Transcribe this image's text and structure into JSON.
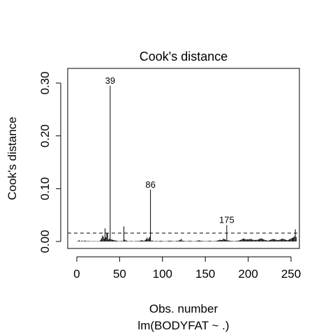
{
  "chart_data": {
    "type": "bar",
    "title": "Cook's distance",
    "xlabel": "Obs. number",
    "ylabel": "Cook's distance",
    "subtitle": "lm(BODYFAT ~ .)",
    "xlim": [
      0,
      252
    ],
    "ylim": [
      0,
      0.32
    ],
    "x_ticks": [
      "0",
      "50",
      "100",
      "150",
      "200",
      "250"
    ],
    "x_tick_values": [
      0,
      50,
      100,
      150,
      200,
      250
    ],
    "y_ticks": [
      "0.00",
      "0.10",
      "0.20",
      "0.30"
    ],
    "y_tick_values": [
      0,
      0.1,
      0.2,
      0.3
    ],
    "threshold": 0.0159,
    "threshold_style": "dashed",
    "labeled_points": [
      {
        "x": 39,
        "label": "39"
      },
      {
        "x": 86,
        "label": "86"
      },
      {
        "x": 175,
        "label": "175"
      }
    ],
    "values": [
      0.0012,
      0.0008,
      0.0025,
      0.0004,
      0.0006,
      0.0019,
      0.0003,
      0.0009,
      0.0015,
      0.0017,
      0.0005,
      0.0007,
      0.0011,
      0.0009,
      0.0006,
      0.0004,
      0.0008,
      0.0005,
      0.0006,
      0.0007,
      0.0003,
      0.0009,
      0.0004,
      0.0005,
      0.0006,
      0.0008,
      0.0012,
      0.0035,
      0.0061,
      0.0113,
      0.0095,
      0.0056,
      0.0247,
      0.0081,
      0.0151,
      0.0152,
      0.0034,
      0.0054,
      0.295,
      0.0041,
      0.0036,
      0.0031,
      0.0028,
      0.0024,
      0.0019,
      0.0015,
      0.0012,
      0.0009,
      0.0007,
      0.0005,
      0.0006,
      0.0011,
      0.0009,
      0.0015,
      0.0285,
      0.0036,
      0.0021,
      0.0019,
      0.0007,
      0.0009,
      0.0004,
      0.0005,
      0.0011,
      0.0009,
      0.0007,
      0.0005,
      0.0004,
      0.0006,
      0.0008,
      0.0011,
      0.0007,
      0.0009,
      0.0011,
      0.0015,
      0.0021,
      0.0025,
      0.0016,
      0.0014,
      0.0018,
      0.0032,
      0.0045,
      0.0075,
      0.0045,
      0.0062,
      0.0086,
      0.098,
      0.0013,
      0.0021,
      0.0008,
      0.0005,
      0.0007,
      0.0011,
      0.0009,
      0.0006,
      0.0006,
      0.0008,
      0.0011,
      0.0013,
      0.0012,
      0.0009,
      0.0007,
      0.0005,
      0.0004,
      0.0006,
      0.0007,
      0.0009,
      0.0011,
      0.0013,
      0.0016,
      0.0012,
      0.0009,
      0.0008,
      0.0006,
      0.0005,
      0.0007,
      0.0009,
      0.0011,
      0.0014,
      0.0018,
      0.0024,
      0.0032,
      0.0052,
      0.0016,
      0.0015,
      0.0012,
      0.0009,
      0.0007,
      0.0006,
      0.0007,
      0.0009,
      0.0011,
      0.0014,
      0.0012,
      0.0008,
      0.0006,
      0.0004,
      0.0005,
      0.0006,
      0.0008,
      0.0012,
      0.0015,
      0.0018,
      0.0022,
      0.0016,
      0.0013,
      0.0011,
      0.0009,
      0.0007,
      0.0008,
      0.0006,
      0.0005,
      0.0007,
      0.0009,
      0.0012,
      0.0014,
      0.0011,
      0.0009,
      0.0007,
      0.0006,
      0.0005,
      0.0007,
      0.0009,
      0.0012,
      0.0016,
      0.0021,
      0.0026,
      0.0035,
      0.0028,
      0.0026,
      0.0031,
      0.0055,
      0.0047,
      0.0039,
      0.0032,
      0.031,
      0.0022,
      0.0019,
      0.0016,
      0.0013,
      0.0011,
      0.0009,
      0.0008,
      0.0006,
      0.0006,
      0.0008,
      0.0011,
      0.0009,
      0.0014,
      0.0018,
      0.0022,
      0.0029,
      0.0032,
      0.0045,
      0.0055,
      0.0052,
      0.0048,
      0.0041,
      0.0038,
      0.0042,
      0.0038,
      0.0043,
      0.0046,
      0.0049,
      0.0042,
      0.0036,
      0.0031,
      0.0029,
      0.0025,
      0.0031,
      0.0028,
      0.0033,
      0.0039,
      0.0046,
      0.0052,
      0.0062,
      0.0055,
      0.0044,
      0.0039,
      0.0031,
      0.0028,
      0.0022,
      0.0018,
      0.0016,
      0.0019,
      0.0025,
      0.0031,
      0.0036,
      0.0043,
      0.0048,
      0.0045,
      0.0041,
      0.0036,
      0.0031,
      0.0027,
      0.0024,
      0.0029,
      0.0035,
      0.0041,
      0.0047,
      0.0054,
      0.0049,
      0.0043,
      0.0037,
      0.0031,
      0.0026,
      0.0024,
      0.0031,
      0.0039,
      0.0048,
      0.0056,
      0.0065,
      0.0072,
      0.0083,
      0.0097,
      0.0232,
      0.0085
    ]
  }
}
